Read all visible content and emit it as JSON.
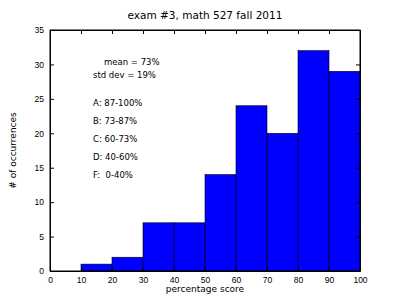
{
  "chart_data": {
    "type": "histogram",
    "title": "exam #3, math 527 fall 2011",
    "x_label": "percentage score",
    "y_label": "# of occurrences",
    "bins": [
      0,
      10,
      20,
      30,
      40,
      50,
      60,
      70,
      80,
      90,
      100
    ],
    "values": [
      0,
      1,
      2,
      7,
      7,
      14,
      24,
      20,
      32,
      29
    ],
    "color": "#0000ff",
    "xlim": [
      0,
      100
    ],
    "ylim": [
      0,
      35
    ],
    "xticks": [
      0,
      10,
      20,
      30,
      40,
      50,
      60,
      70,
      80,
      90,
      100
    ],
    "yticks": [
      0,
      5,
      10,
      15,
      20,
      25,
      30,
      35
    ],
    "annotations": [
      "mean = 73%",
      "std dev = 19%",
      "A: 87-100%",
      "B: 73-87%",
      "C: 60-73%",
      "D: 40-60%",
      "F:  0-40%"
    ]
  }
}
